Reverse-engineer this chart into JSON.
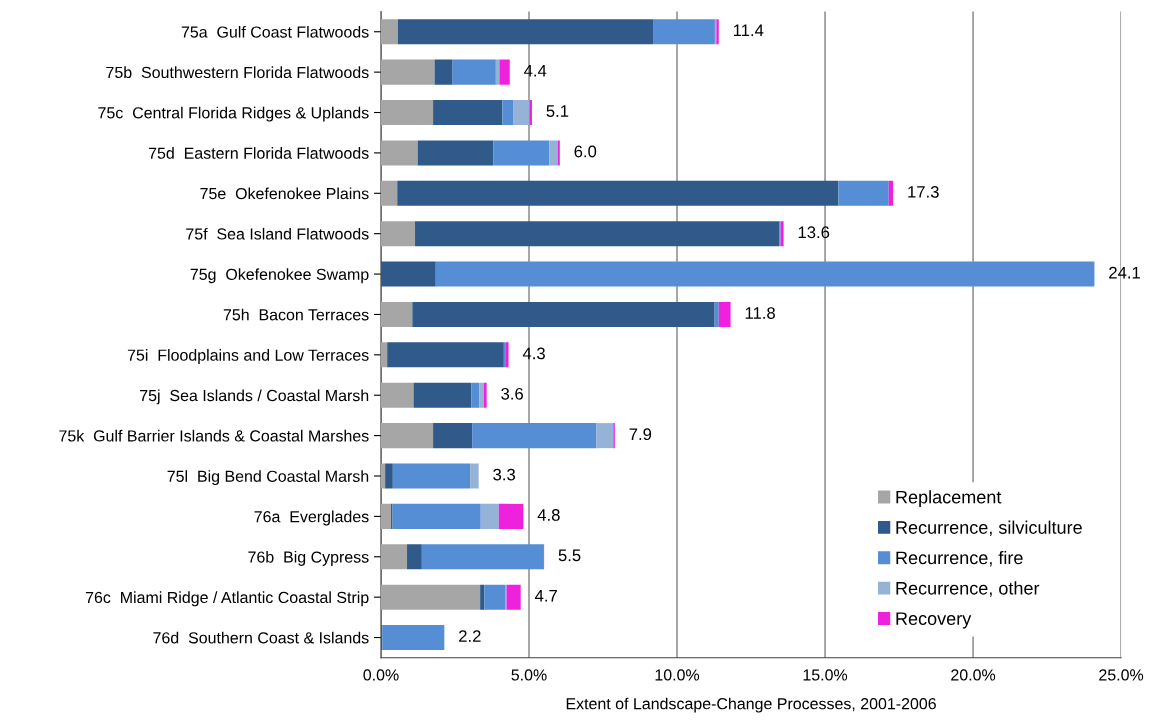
{
  "chart_data": {
    "type": "bar",
    "orientation": "horizontal",
    "stacked": true,
    "xlabel": "Extent of Landscape-Change Processes, 2001-2006",
    "categories": [
      "75a  Gulf Coast Flatwoods",
      "75b  Southwestern Florida Flatwoods",
      "75c  Central Florida Ridges & Uplands",
      "75d  Eastern Florida Flatwoods",
      "75e  Okefenokee Plains",
      "75f  Sea Island Flatwoods",
      "75g  Okefenokee Swamp",
      "75h  Bacon Terraces",
      "75i  Floodplains and Low Terraces",
      "75j  Sea Islands / Coastal Marsh",
      "75k  Gulf Barrier Islands & Coastal Marshes",
      "75l  Big Bend Coastal Marsh",
      "76a  Everglades",
      "76b  Big Cypress",
      "76c  Miami Ridge / Atlantic Coastal Strip",
      "76d  Southern Coast & Islands"
    ],
    "series": [
      {
        "name": "Replacement",
        "color": "#a6a6a6",
        "values": [
          0.57,
          1.81,
          1.76,
          1.24,
          0.55,
          1.15,
          0,
          1.06,
          0.21,
          1.1,
          1.76,
          0.14,
          0.34,
          0.88,
          3.35,
          null
        ]
      },
      {
        "name": "Recurrence, silviculture",
        "color": "#2f5a8a",
        "values": [
          8.62,
          0.61,
          2.34,
          2.56,
          14.9,
          12.3,
          1.85,
          10.21,
          3.94,
          1.95,
          1.32,
          0.26,
          0.05,
          0.5,
          0.14,
          0.05
        ]
      },
      {
        "name": "Recurrence, fire",
        "color": "#558ed5",
        "values": [
          2.09,
          1.46,
          0.38,
          1.89,
          1.7,
          0.05,
          22.25,
          0.14,
          0.07,
          0.27,
          4.2,
          2.61,
          2.98,
          4.1,
          0.7,
          2.09
        ]
      },
      {
        "name": "Recurrence, other",
        "color": "#95b3d7",
        "values": [
          0.05,
          0.12,
          0.54,
          0.29,
          0,
          0,
          0,
          0,
          0,
          0.16,
          0.57,
          0.29,
          0.61,
          0,
          0.05,
          0
        ]
      },
      {
        "name": "Recovery",
        "color": "#ee22dd",
        "values": [
          0.08,
          0.35,
          0.08,
          0.06,
          0.15,
          0.1,
          0,
          0.4,
          0.09,
          0.09,
          0.05,
          0,
          0.83,
          0.03,
          0.48,
          0
        ]
      }
    ],
    "totals": [
      "11.4",
      "4.4",
      "5.1",
      "6.0",
      "17.3",
      "13.6",
      "24.1",
      "11.8",
      "4.3",
      "3.6",
      "7.9",
      "3.3",
      "4.8",
      "5.5",
      "4.7",
      "2.2"
    ],
    "xlim": [
      0,
      25
    ],
    "xticks": [
      {
        "value": 0,
        "label": "0.0%"
      },
      {
        "value": 5,
        "label": "5.0%"
      },
      {
        "value": 10,
        "label": "10.0%"
      },
      {
        "value": 15,
        "label": "15.0%"
      },
      {
        "value": 20,
        "label": "20.0%"
      },
      {
        "value": 25,
        "label": "25.0%"
      }
    ],
    "grid": "x",
    "legend": "bottom right"
  }
}
